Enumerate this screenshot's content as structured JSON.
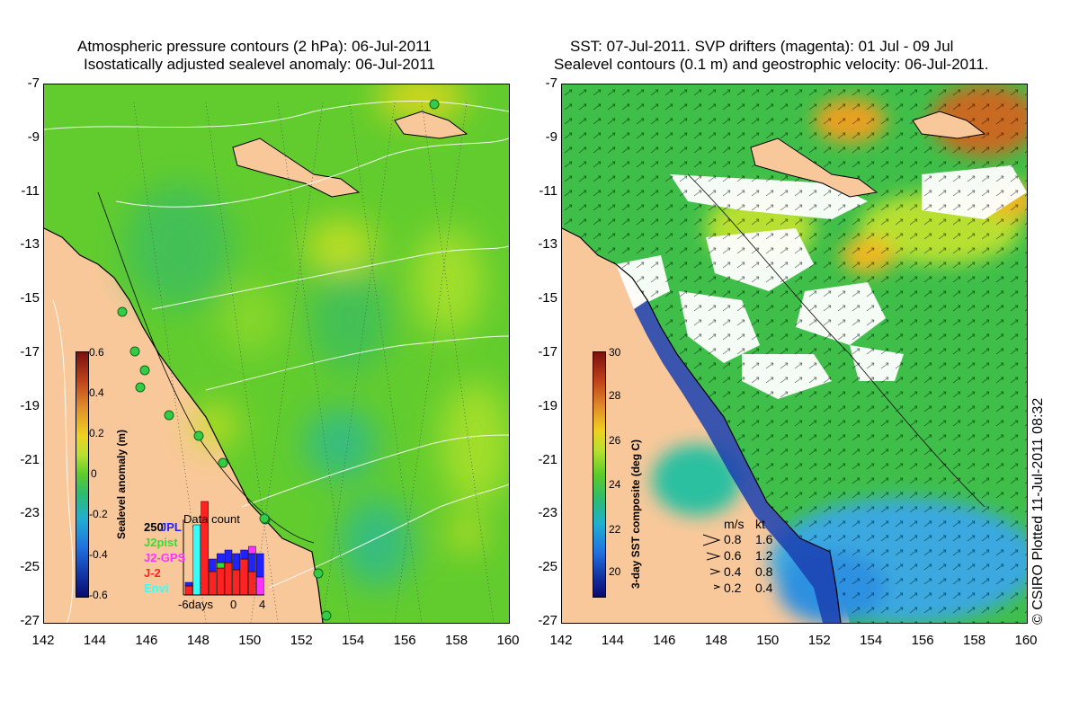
{
  "left_panel": {
    "title_line1": "Atmospheric pressure contours (2 hPa): 06-Jul-2011",
    "title_line2": "Isostatically adjusted sealevel anomaly: 06-Jul-2011",
    "colorbar": {
      "label": "Sealevel anomaly (m)",
      "ticks": [
        "0.6",
        "0.4",
        "0.2",
        "0",
        "-0.2",
        "-0.4",
        "-0.6"
      ]
    },
    "data_count": {
      "title": "Data count",
      "ymax_label": "250",
      "x_labels": [
        "-6days",
        "0",
        "4"
      ],
      "missions": [
        {
          "name": "JPL",
          "color": "#2222ff"
        },
        {
          "name": "J2pist",
          "color": "#33dd33"
        },
        {
          "name": "J2-GPS",
          "color": "#ff33ff"
        },
        {
          "name": "J-2",
          "color": "#ff2222"
        },
        {
          "name": "Envi",
          "color": "#33ffff"
        }
      ]
    }
  },
  "right_panel": {
    "title_line1": "SST: 07-Jul-2011. SVP drifters (magenta): 01 Jul - 09 Jul",
    "title_line2": "Sealevel contours (0.1 m) and geostrophic velocity: 06-Jul-2011.",
    "colorbar": {
      "label": "3-day SST composite (deg C)",
      "ticks": [
        "30",
        "28",
        "26",
        "24",
        "22",
        "20"
      ]
    },
    "velocity_legend": {
      "header_ms": "m/s",
      "header_kt": "kt",
      "rows": [
        {
          "ms": "0.8",
          "kt": "1.6"
        },
        {
          "ms": "0.6",
          "kt": "1.2"
        },
        {
          "ms": "0.4",
          "kt": "0.8"
        },
        {
          "ms": "0.2",
          "kt": "0.4"
        }
      ]
    }
  },
  "axes": {
    "y_ticks": [
      "-7",
      "-9",
      "-11",
      "-13",
      "-15",
      "-17",
      "-19",
      "-21",
      "-23",
      "-25",
      "-27"
    ],
    "x_ticks": [
      "142",
      "144",
      "146",
      "148",
      "150",
      "152",
      "154",
      "156",
      "158",
      "160"
    ]
  },
  "credit": "© CSIRO Plotted 11-Jul-2011 08:32",
  "colors": {
    "land": "#f9c89a",
    "sea_green": "#5ccc2a",
    "sst_white": "#ffffff"
  }
}
